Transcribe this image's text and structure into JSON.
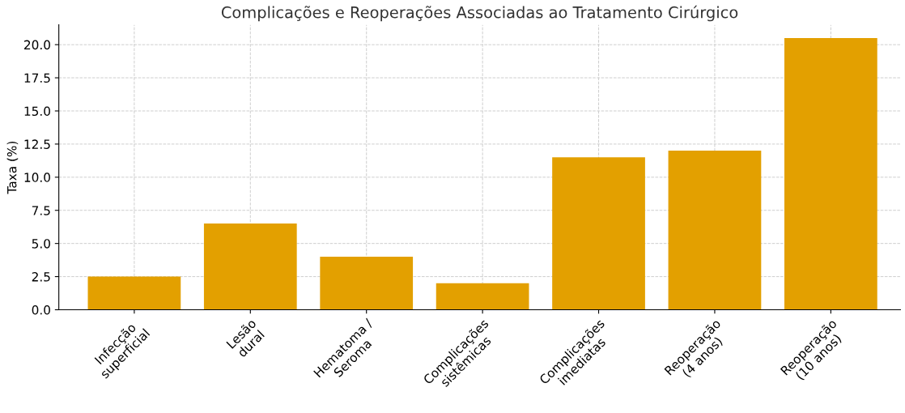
{
  "chart_data": {
    "type": "bar",
    "title": "Complicações e Reoperações Associadas ao Tratamento Cirúrgico",
    "ylabel": "Taxa (%)",
    "categories": [
      "Infecção\nsuperficial",
      "Lesão\ndural",
      "Hematoma /\nSeroma",
      "Complicações\nsistêmicas",
      "Complicações\nimediatas",
      "Reoperação\n(4 anos)",
      "Reoperação\n(10 anos)"
    ],
    "values": [
      2.5,
      6.5,
      4.0,
      2.0,
      11.5,
      12.0,
      20.5
    ],
    "color": "#e3a000",
    "ylim": [
      0,
      21.5
    ],
    "yticks": [
      {
        "value": 0,
        "label": "0.0"
      },
      {
        "value": 2.5,
        "label": "2.5"
      },
      {
        "value": 5,
        "label": "5.0"
      },
      {
        "value": 7.5,
        "label": "7.5"
      },
      {
        "value": 10,
        "label": "10.0"
      },
      {
        "value": 12.5,
        "label": "12.5"
      },
      {
        "value": 15,
        "label": "15.0"
      },
      {
        "value": 17.5,
        "label": "17.5"
      },
      {
        "value": 20,
        "label": "20.0"
      }
    ],
    "grid": true
  }
}
